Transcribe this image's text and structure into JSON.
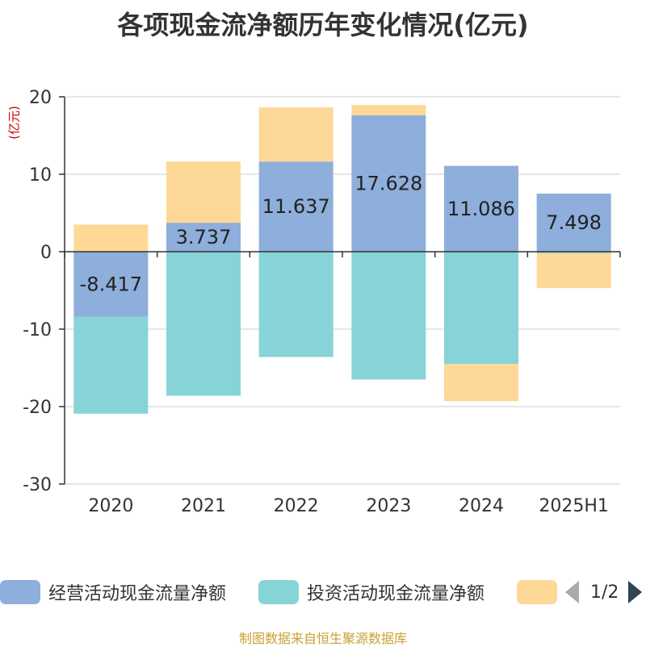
{
  "chart_data": {
    "type": "bar",
    "stacked": true,
    "title": "各项现金流净额历年变化情况(亿元)",
    "ylabel": "(亿元)",
    "categories": [
      "2020",
      "2021",
      "2022",
      "2023",
      "2024",
      "2025H1"
    ],
    "ylim": [
      -30,
      20
    ],
    "yticks": [
      20,
      10,
      0,
      -10,
      -20,
      -30
    ],
    "grid": true,
    "legend_position": "bottom",
    "series": [
      {
        "name": "经营活动现金流量净额",
        "color": "#8eaedb",
        "values": [
          -8.417,
          3.737,
          11.637,
          17.628,
          11.086,
          7.498
        ],
        "labels": [
          "-8.417",
          "3.737",
          "11.637",
          "17.628",
          "11.086",
          "7.498"
        ]
      },
      {
        "name": "投资活动现金流量净额",
        "color": "#86d4d8",
        "values": [
          -12.5,
          -18.6,
          -13.6,
          -16.5,
          -14.5,
          -0.2
        ]
      },
      {
        "name": "",
        "color": "#fdd896",
        "values": [
          3.5,
          7.9,
          7.0,
          1.3,
          -4.8,
          -4.5
        ]
      }
    ]
  },
  "legend": {
    "items": [
      {
        "label": "经营活动现金流量净额",
        "color": "#8eaedb"
      },
      {
        "label": "投资活动现金流量净额",
        "color": "#86d4d8"
      },
      {
        "label": "",
        "color": "#fdd896"
      }
    ],
    "page": "1/2"
  },
  "source": "制图数据来自恒生聚源数据库"
}
